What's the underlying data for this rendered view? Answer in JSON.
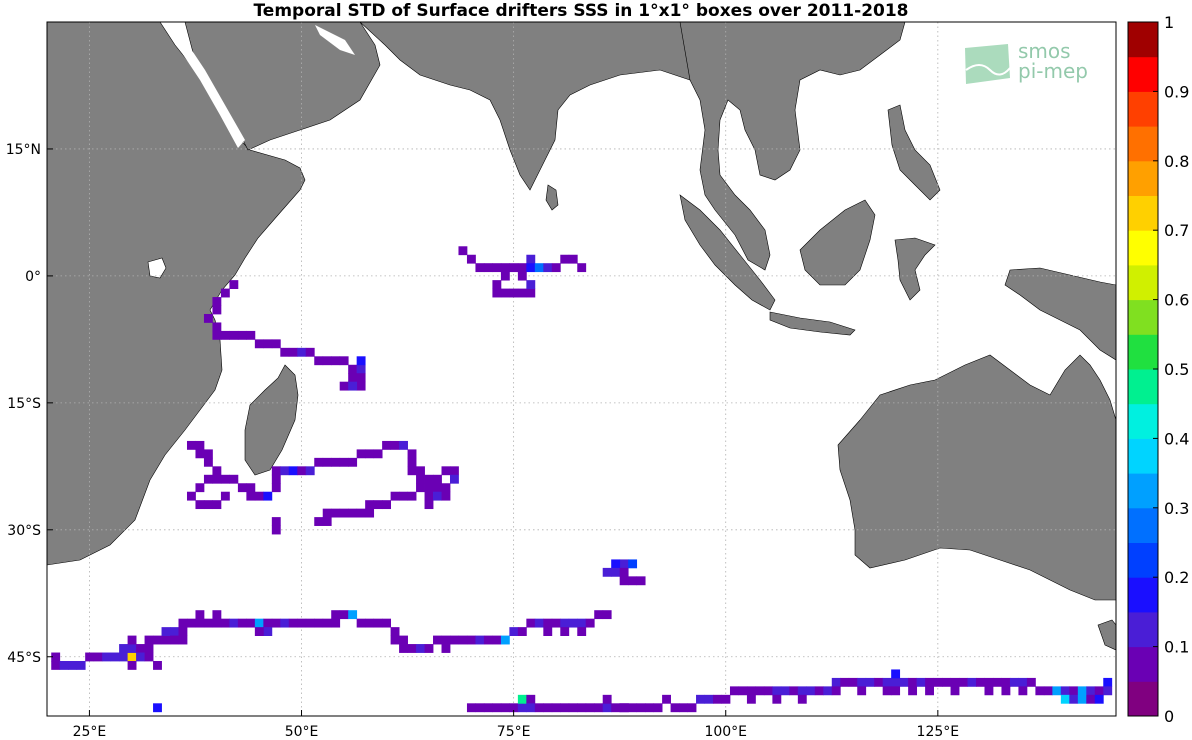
{
  "title": "Temporal STD of Surface drifters SSS in 1°x1° boxes over 2011-2018",
  "logo": {
    "line1": "smos",
    "line2": "pi-mep"
  },
  "map": {
    "lon_range": [
      20,
      146
    ],
    "lat_range": [
      -52,
      30
    ],
    "land_color": "#808080",
    "ocean_color": "#ffffff",
    "grid": "dotted",
    "x_ticks": [
      {
        "value": 25,
        "label": "25°E"
      },
      {
        "value": 50,
        "label": "50°E"
      },
      {
        "value": 75,
        "label": "75°E"
      },
      {
        "value": 100,
        "label": "100°E"
      },
      {
        "value": 125,
        "label": "125°E"
      }
    ],
    "y_ticks": [
      {
        "value": 15,
        "label": "15°N"
      },
      {
        "value": 0,
        "label": "0°"
      },
      {
        "value": -15,
        "label": "15°S"
      },
      {
        "value": -30,
        "label": "30°S"
      },
      {
        "value": -45,
        "label": "45°S"
      }
    ]
  },
  "colorbar": {
    "min": 0,
    "max": 1,
    "levels": 20,
    "colors": [
      "#800080",
      "#6a00b4",
      "#4a1ed6",
      "#1a0fff",
      "#0040ff",
      "#0070ff",
      "#00a0ff",
      "#00d4ff",
      "#00f0e0",
      "#00f090",
      "#20e040",
      "#80e020",
      "#d0f000",
      "#ffff00",
      "#ffd000",
      "#ffa000",
      "#ff7000",
      "#ff4000",
      "#ff0000",
      "#a00000"
    ],
    "tick_labels": [
      "0",
      "0.1",
      "0.2",
      "0.3",
      "0.4",
      "0.5",
      "0.6",
      "0.7",
      "0.8",
      "0.9",
      "1"
    ]
  },
  "chart_data": {
    "type": "heatmap",
    "title": "Temporal STD of Surface drifters SSS in 1°x1° boxes over 2011-2018",
    "units_note": "cells are [lon, lat, std]",
    "cells": [
      [
        42,
        -1,
        0.05
      ],
      [
        41,
        -2,
        0.05
      ],
      [
        40,
        -3,
        0.05
      ],
      [
        40,
        -4,
        0.05
      ],
      [
        39,
        -5,
        0.05
      ],
      [
        40,
        -6,
        0.05
      ],
      [
        40,
        -7,
        0.05
      ],
      [
        41,
        -7,
        0.05
      ],
      [
        42,
        -7,
        0.05
      ],
      [
        43,
        -7,
        0.05
      ],
      [
        44,
        -7,
        0.05
      ],
      [
        45,
        -8,
        0.05
      ],
      [
        46,
        -8,
        0.05
      ],
      [
        47,
        -8,
        0.05
      ],
      [
        48,
        -9,
        0.05
      ],
      [
        49,
        -9,
        0.05
      ],
      [
        50,
        -9,
        0.12
      ],
      [
        51,
        -9,
        0.05
      ],
      [
        52,
        -10,
        0.05
      ],
      [
        53,
        -10,
        0.05
      ],
      [
        54,
        -10,
        0.05
      ],
      [
        55,
        -10,
        0.05
      ],
      [
        56,
        -11,
        0.05
      ],
      [
        57,
        -11,
        0.12
      ],
      [
        57,
        -12,
        0.05
      ],
      [
        56,
        -12,
        0.05
      ],
      [
        55,
        -13,
        0.05
      ],
      [
        57,
        -13,
        0.05
      ],
      [
        56,
        -13,
        0.12
      ],
      [
        57,
        -10,
        0.18
      ],
      [
        37,
        -20,
        0.05
      ],
      [
        38,
        -20,
        0.05
      ],
      [
        38,
        -21,
        0.05
      ],
      [
        39,
        -21,
        0.05
      ],
      [
        39,
        -22,
        0.05
      ],
      [
        40,
        -23,
        0.05
      ],
      [
        39,
        -24,
        0.05
      ],
      [
        40,
        -24,
        0.05
      ],
      [
        41,
        -24,
        0.05
      ],
      [
        42,
        -24,
        0.05
      ],
      [
        38,
        -25,
        0.05
      ],
      [
        37,
        -26,
        0.05
      ],
      [
        38,
        -27,
        0.05
      ],
      [
        39,
        -27,
        0.05
      ],
      [
        40,
        -27,
        0.05
      ],
      [
        41,
        -26,
        0.05
      ],
      [
        43,
        -25,
        0.05
      ],
      [
        44,
        -25,
        0.05
      ],
      [
        45,
        -26,
        0.05
      ],
      [
        46,
        -26,
        0.15
      ],
      [
        44,
        -26,
        0.05
      ],
      [
        47,
        -25,
        0.05
      ],
      [
        47,
        -24,
        0.05
      ],
      [
        47,
        -23,
        0.05
      ],
      [
        48,
        -23,
        0.12
      ],
      [
        49,
        -23,
        0.15
      ],
      [
        50,
        -23,
        0.05
      ],
      [
        51,
        -23,
        0.12
      ],
      [
        52,
        -22,
        0.05
      ],
      [
        53,
        -22,
        0.05
      ],
      [
        54,
        -22,
        0.05
      ],
      [
        55,
        -22,
        0.05
      ],
      [
        56,
        -22,
        0.05
      ],
      [
        57,
        -21,
        0.05
      ],
      [
        58,
        -21,
        0.05
      ],
      [
        59,
        -21,
        0.05
      ],
      [
        60,
        -20,
        0.05
      ],
      [
        61,
        -20,
        0.05
      ],
      [
        62,
        -20,
        0.12
      ],
      [
        63,
        -21,
        0.05
      ],
      [
        63,
        -22,
        0.05
      ],
      [
        63,
        -23,
        0.05
      ],
      [
        64,
        -23,
        0.05
      ],
      [
        64,
        -24,
        0.05
      ],
      [
        65,
        -24,
        0.05
      ],
      [
        66,
        -24,
        0.05
      ],
      [
        67,
        -23,
        0.05
      ],
      [
        68,
        -23,
        0.05
      ],
      [
        68,
        -24,
        0.12
      ],
      [
        67,
        -25,
        0.05
      ],
      [
        66,
        -25,
        0.05
      ],
      [
        65,
        -25,
        0.05
      ],
      [
        64,
        -25,
        0.05
      ],
      [
        63,
        -26,
        0.05
      ],
      [
        62,
        -26,
        0.05
      ],
      [
        61,
        -26,
        0.05
      ],
      [
        60,
        -27,
        0.05
      ],
      [
        59,
        -27,
        0.05
      ],
      [
        58,
        -27,
        0.05
      ],
      [
        57,
        -28,
        0.05
      ],
      [
        56,
        -28,
        0.05
      ],
      [
        55,
        -28,
        0.05
      ],
      [
        54,
        -28,
        0.05
      ],
      [
        53,
        -28,
        0.05
      ],
      [
        53,
        -29,
        0.05
      ],
      [
        58,
        -28,
        0.05
      ],
      [
        52,
        -29,
        0.05
      ],
      [
        47,
        -30,
        0.05
      ],
      [
        47,
        -29,
        0.05
      ],
      [
        65,
        -26,
        0.05
      ],
      [
        66,
        -26,
        0.12
      ],
      [
        67,
        -26,
        0.05
      ],
      [
        65,
        -27,
        0.05
      ],
      [
        69,
        3,
        0.05
      ],
      [
        70,
        2,
        0.05
      ],
      [
        71,
        1,
        0.05
      ],
      [
        72,
        1,
        0.05
      ],
      [
        73,
        1,
        0.05
      ],
      [
        74,
        1,
        0.05
      ],
      [
        75,
        1,
        0.05
      ],
      [
        76,
        1,
        0.05
      ],
      [
        77,
        2,
        0.12
      ],
      [
        77,
        1,
        0.15
      ],
      [
        78,
        1,
        0.25
      ],
      [
        79,
        1,
        0.12
      ],
      [
        80,
        1,
        0.05
      ],
      [
        81,
        2,
        0.05
      ],
      [
        82,
        2,
        0.05
      ],
      [
        83,
        1,
        0.05
      ],
      [
        74,
        0,
        0.05
      ],
      [
        73,
        -1,
        0.05
      ],
      [
        73,
        -2,
        0.05
      ],
      [
        74,
        -2,
        0.05
      ],
      [
        75,
        -2,
        0.05
      ],
      [
        76,
        -2,
        0.05
      ],
      [
        77,
        -2,
        0.05
      ],
      [
        77,
        -1,
        0.12
      ],
      [
        76,
        0,
        0.05
      ],
      [
        88,
        -34,
        0.12
      ],
      [
        87,
        -34,
        0.15
      ],
      [
        89,
        -34,
        0.2
      ],
      [
        86,
        -35,
        0.12
      ],
      [
        87,
        -35,
        0.12
      ],
      [
        88,
        -35,
        0.05
      ],
      [
        88,
        -36,
        0.05
      ],
      [
        89,
        -36,
        0.05
      ],
      [
        90,
        -36,
        0.05
      ],
      [
        21,
        -45,
        0.05
      ],
      [
        21,
        -46,
        0.05
      ],
      [
        22,
        -46,
        0.12
      ],
      [
        23,
        -46,
        0.12
      ],
      [
        24,
        -46,
        0.12
      ],
      [
        25,
        -45,
        0.05
      ],
      [
        26,
        -45,
        0.05
      ],
      [
        27,
        -45,
        0.12
      ],
      [
        28,
        -45,
        0.12
      ],
      [
        29,
        -45,
        0.12
      ],
      [
        30,
        -45,
        0.7
      ],
      [
        29,
        -44,
        0.12
      ],
      [
        30,
        -44,
        0.12
      ],
      [
        31,
        -44,
        0.05
      ],
      [
        32,
        -44,
        0.05
      ],
      [
        31,
        -45,
        0.12
      ],
      [
        32,
        -45,
        0.05
      ],
      [
        30,
        -46,
        0.05
      ],
      [
        33,
        -46,
        0.05
      ],
      [
        33,
        -43,
        0.05
      ],
      [
        34,
        -43,
        0.05
      ],
      [
        34,
        -42,
        0.12
      ],
      [
        35,
        -42,
        0.12
      ],
      [
        36,
        -42,
        0.05
      ],
      [
        36,
        -41,
        0.05
      ],
      [
        37,
        -41,
        0.05
      ],
      [
        38,
        -41,
        0.05
      ],
      [
        39,
        -41,
        0.05
      ],
      [
        40,
        -41,
        0.05
      ],
      [
        41,
        -41,
        0.05
      ],
      [
        42,
        -41,
        0.12
      ],
      [
        43,
        -41,
        0.05
      ],
      [
        44,
        -41,
        0.05
      ],
      [
        45,
        -41,
        0.3
      ],
      [
        46,
        -41,
        0.05
      ],
      [
        47,
        -41,
        0.05
      ],
      [
        48,
        -41,
        0.12
      ],
      [
        49,
        -41,
        0.05
      ],
      [
        50,
        -41,
        0.05
      ],
      [
        51,
        -41,
        0.05
      ],
      [
        52,
        -41,
        0.05
      ],
      [
        53,
        -41,
        0.05
      ],
      [
        54,
        -41,
        0.05
      ],
      [
        54,
        -40,
        0.05
      ],
      [
        55,
        -40,
        0.05
      ],
      [
        56,
        -40,
        0.3
      ],
      [
        57,
        -41,
        0.05
      ],
      [
        58,
        -41,
        0.05
      ],
      [
        59,
        -41,
        0.05
      ],
      [
        60,
        -41,
        0.05
      ],
      [
        61,
        -42,
        0.05
      ],
      [
        61,
        -43,
        0.05
      ],
      [
        62,
        -43,
        0.05
      ],
      [
        62,
        -44,
        0.05
      ],
      [
        63,
        -44,
        0.05
      ],
      [
        64,
        -44,
        0.12
      ],
      [
        65,
        -44,
        0.05
      ],
      [
        66,
        -43,
        0.05
      ],
      [
        67,
        -43,
        0.05
      ],
      [
        68,
        -43,
        0.05
      ],
      [
        69,
        -43,
        0.05
      ],
      [
        70,
        -43,
        0.05
      ],
      [
        71,
        -43,
        0.12
      ],
      [
        72,
        -43,
        0.05
      ],
      [
        73,
        -43,
        0.05
      ],
      [
        74,
        -43,
        0.3
      ],
      [
        75,
        -42,
        0.12
      ],
      [
        76,
        -42,
        0.05
      ],
      [
        77,
        -41,
        0.05
      ],
      [
        78,
        -41,
        0.12
      ],
      [
        79,
        -41,
        0.05
      ],
      [
        80,
        -41,
        0.05
      ],
      [
        81,
        -41,
        0.12
      ],
      [
        82,
        -41,
        0.12
      ],
      [
        83,
        -41,
        0.12
      ],
      [
        84,
        -41,
        0.05
      ],
      [
        85,
        -40,
        0.05
      ],
      [
        86,
        -40,
        0.05
      ],
      [
        38,
        -40,
        0.05
      ],
      [
        40,
        -40,
        0.05
      ],
      [
        46,
        -42,
        0.12
      ],
      [
        45,
        -42,
        0.05
      ],
      [
        35,
        -43,
        0.05
      ],
      [
        36,
        -43,
        0.05
      ],
      [
        67,
        -44,
        0.05
      ],
      [
        83,
        -42,
        0.05
      ],
      [
        79,
        -42,
        0.05
      ],
      [
        81,
        -42,
        0.05
      ],
      [
        30,
        -43,
        0.05
      ],
      [
        32,
        -43,
        0.05
      ],
      [
        33,
        -51,
        0.15
      ],
      [
        70,
        -51,
        0.05
      ],
      [
        71,
        -51,
        0.05
      ],
      [
        72,
        -51,
        0.05
      ],
      [
        73,
        -51,
        0.05
      ],
      [
        74,
        -51,
        0.05
      ],
      [
        75,
        -51,
        0.05
      ],
      [
        76,
        -51,
        0.12
      ],
      [
        76,
        -50,
        0.45
      ],
      [
        77,
        -50,
        0.05
      ],
      [
        77,
        -51,
        0.12
      ],
      [
        78,
        -51,
        0.05
      ],
      [
        79,
        -51,
        0.05
      ],
      [
        80,
        -51,
        0.05
      ],
      [
        81,
        -51,
        0.05
      ],
      [
        82,
        -51,
        0.05
      ],
      [
        83,
        -51,
        0.05
      ],
      [
        84,
        -51,
        0.05
      ],
      [
        85,
        -51,
        0.05
      ],
      [
        86,
        -51,
        0.12
      ],
      [
        86,
        -50,
        0.05
      ],
      [
        87,
        -51,
        0.05
      ],
      [
        88,
        -51,
        0.05
      ],
      [
        89,
        -51,
        0.05
      ],
      [
        90,
        -51,
        0.05
      ],
      [
        91,
        -51,
        0.05
      ],
      [
        92,
        -51,
        0.05
      ],
      [
        93,
        -50,
        0.05
      ],
      [
        94,
        -51,
        0.05
      ],
      [
        95,
        -51,
        0.05
      ],
      [
        96,
        -51,
        0.05
      ],
      [
        97,
        -50,
        0.12
      ],
      [
        98,
        -50,
        0.12
      ],
      [
        99,
        -50,
        0.05
      ],
      [
        100,
        -50,
        0.05
      ],
      [
        101,
        -49,
        0.05
      ],
      [
        102,
        -49,
        0.05
      ],
      [
        103,
        -49,
        0.05
      ],
      [
        104,
        -49,
        0.05
      ],
      [
        105,
        -49,
        0.05
      ],
      [
        106,
        -49,
        0.12
      ],
      [
        107,
        -49,
        0.12
      ],
      [
        108,
        -49,
        0.05
      ],
      [
        109,
        -49,
        0.12
      ],
      [
        110,
        -49,
        0.12
      ],
      [
        111,
        -49,
        0.05
      ],
      [
        112,
        -49,
        0.12
      ],
      [
        113,
        -48,
        0.12
      ],
      [
        114,
        -48,
        0.05
      ],
      [
        115,
        -48,
        0.05
      ],
      [
        116,
        -48,
        0.12
      ],
      [
        117,
        -48,
        0.12
      ],
      [
        118,
        -48,
        0.05
      ],
      [
        119,
        -48,
        0.12
      ],
      [
        120,
        -48,
        0.12
      ],
      [
        121,
        -48,
        0.12
      ],
      [
        122,
        -48,
        0.05
      ],
      [
        123,
        -48,
        0.12
      ],
      [
        124,
        -48,
        0.05
      ],
      [
        125,
        -48,
        0.05
      ],
      [
        126,
        -48,
        0.05
      ],
      [
        127,
        -48,
        0.05
      ],
      [
        128,
        -48,
        0.05
      ],
      [
        129,
        -48,
        0.12
      ],
      [
        130,
        -48,
        0.05
      ],
      [
        131,
        -48,
        0.05
      ],
      [
        132,
        -48,
        0.05
      ],
      [
        133,
        -48,
        0.05
      ],
      [
        134,
        -48,
        0.12
      ],
      [
        135,
        -48,
        0.12
      ],
      [
        136,
        -48,
        0.05
      ],
      [
        137,
        -49,
        0.05
      ],
      [
        138,
        -49,
        0.05
      ],
      [
        139,
        -49,
        0.3
      ],
      [
        140,
        -49,
        0.12
      ],
      [
        141,
        -49,
        0.05
      ],
      [
        142,
        -49,
        0.3
      ],
      [
        143,
        -49,
        0.12
      ],
      [
        144,
        -49,
        0.05
      ],
      [
        145,
        -48,
        0.15
      ],
      [
        140,
        -50,
        0.35
      ],
      [
        141,
        -50,
        0.12
      ],
      [
        142,
        -50,
        0.3
      ],
      [
        143,
        -50,
        0.05
      ],
      [
        144,
        -50,
        0.15
      ],
      [
        145,
        -49,
        0.12
      ],
      [
        106,
        -50,
        0.05
      ],
      [
        109,
        -50,
        0.05
      ],
      [
        113,
        -49,
        0.05
      ],
      [
        116,
        -49,
        0.05
      ],
      [
        119,
        -49,
        0.05
      ],
      [
        120,
        -49,
        0.05
      ],
      [
        122,
        -49,
        0.05
      ],
      [
        124,
        -49,
        0.05
      ],
      [
        127,
        -49,
        0.05
      ],
      [
        131,
        -49,
        0.05
      ],
      [
        133,
        -49,
        0.05
      ],
      [
        135,
        -49,
        0.05
      ],
      [
        103,
        -50,
        0.05
      ],
      [
        120,
        -47,
        0.15
      ],
      [
        88,
        -51,
        0.05
      ]
    ]
  }
}
